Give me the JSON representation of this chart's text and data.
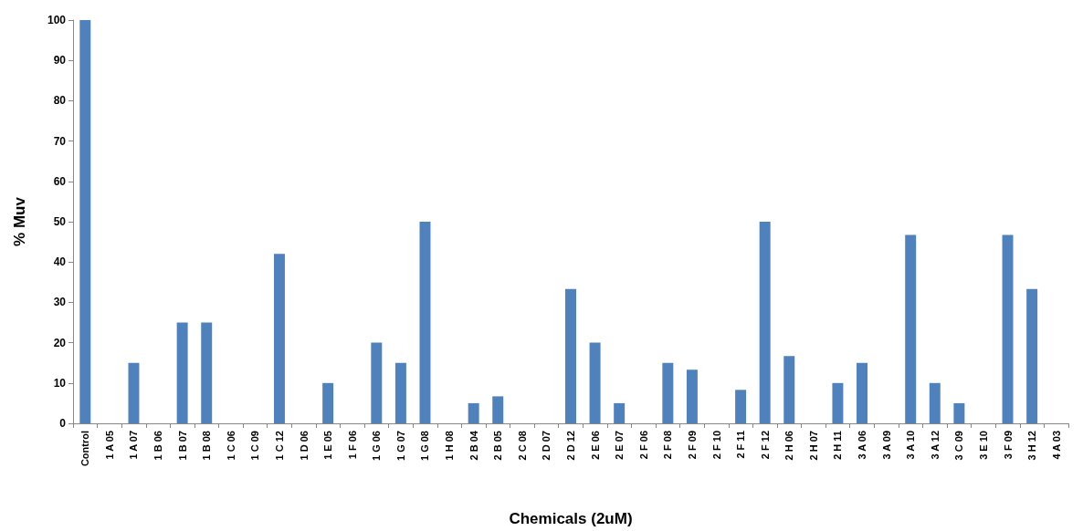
{
  "chart_data": {
    "type": "bar",
    "xlabel": "Chemicals (2uM)",
    "ylabel": "% Muv",
    "categories": [
      "Control",
      "1 A 05",
      "1 A 07",
      "1 B 06",
      "1 B 07",
      "1 B 08",
      "1 C 06",
      "1 C 09",
      "1 C 12",
      "1 D 06",
      "1 E 05",
      "1 F 06",
      "1 G 06",
      "1 G 07",
      "1 G 08",
      "1 H 08",
      "2 B 04",
      "2 B 05",
      "2 C 08",
      "2 D 07",
      "2 D 12",
      "2 E 06",
      "2 E 07",
      "2 F 06",
      "2 F 08",
      "2 F 09",
      "2 F 10",
      "2 F 11",
      "2 F 12",
      "2 H 06",
      "2 H 07",
      "2 H 11",
      "3 A 06",
      "3 A 09",
      "3 A 10",
      "3 A 12",
      "3 C 09",
      "3 E 10",
      "3 F 09",
      "3 H 12",
      "4 A 03"
    ],
    "values": [
      100,
      0,
      15,
      0,
      25,
      25,
      0,
      0,
      42,
      0,
      10,
      0,
      20,
      15,
      50,
      0,
      5,
      6.7,
      0,
      0,
      33.3,
      20,
      5,
      0,
      15,
      13.3,
      0,
      8.3,
      50,
      16.7,
      0,
      10,
      15,
      0,
      46.7,
      10,
      5,
      0,
      46.7,
      33.3,
      0
    ],
    "color": "#4f81bd",
    "ylim": [
      0,
      100
    ],
    "yticks": [
      0,
      10,
      20,
      30,
      40,
      50,
      60,
      70,
      80,
      90,
      100
    ]
  }
}
